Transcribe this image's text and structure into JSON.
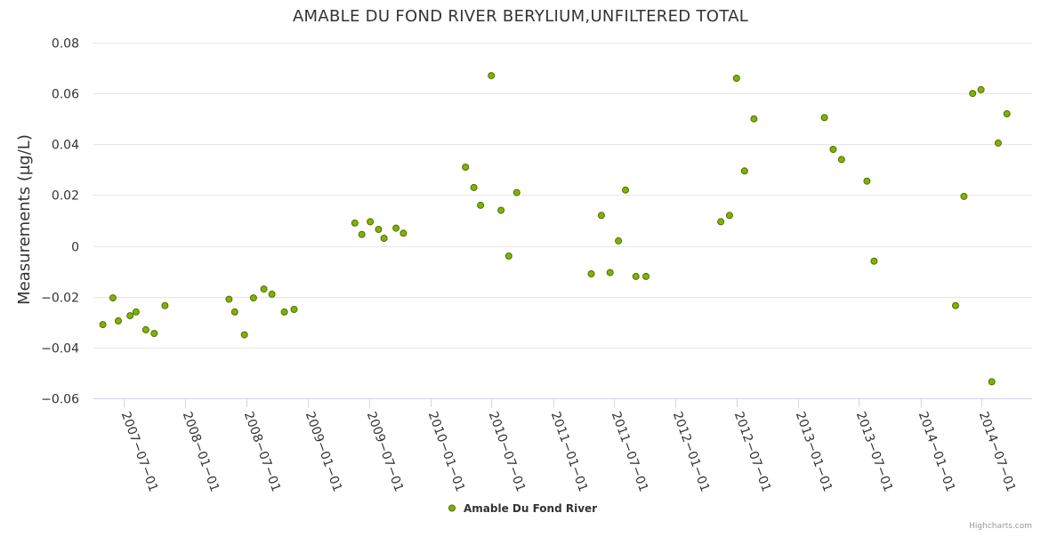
{
  "chart_data": {
    "type": "scatter",
    "title": "AMABLE DU FOND RIVER BERYLIUM,UNFILTERED TOTAL",
    "xlabel": "",
    "ylabel": "Measurements (µg/L)",
    "ylim": [
      -0.06,
      0.08
    ],
    "yticks": [
      -0.06,
      -0.04,
      -0.02,
      0,
      0.02,
      0.04,
      0.06,
      0.08
    ],
    "ytick_labels": [
      "−0.06",
      "−0.04",
      "−0.02",
      "0",
      "0.02",
      "0.04",
      "0.06",
      "0.08"
    ],
    "xticks": [
      "2007-07-01",
      "2008-01-01",
      "2008-07-01",
      "2009-01-01",
      "2009-07-01",
      "2010-01-01",
      "2010-07-01",
      "2011-01-01",
      "2011-07-01",
      "2012-01-01",
      "2012-07-01",
      "2013-01-01",
      "2013-07-01",
      "2014-01-01",
      "2014-07-01"
    ],
    "xtick_labels": [
      "2007−07−01",
      "2008−01−01",
      "2008−07−01",
      "2009−01−01",
      "2009−07−01",
      "2010−01−01",
      "2010−07−01",
      "2011−01−01",
      "2011−07−01",
      "2012−01−01",
      "2012−07−01",
      "2013−01−01",
      "2013−07−01",
      "2014−01−01",
      "2014−07−01"
    ],
    "grid": true,
    "legend_position": "bottom-center",
    "series": [
      {
        "name": "Amable Du Fond River",
        "color": "#7cb500",
        "points": [
          {
            "x": "2007-04-30",
            "y": -0.031
          },
          {
            "x": "2007-05-30",
            "y": -0.0205
          },
          {
            "x": "2007-06-15",
            "y": -0.0295
          },
          {
            "x": "2007-07-20",
            "y": -0.0275
          },
          {
            "x": "2007-08-07",
            "y": -0.026
          },
          {
            "x": "2007-09-05",
            "y": -0.033
          },
          {
            "x": "2007-09-30",
            "y": -0.0345
          },
          {
            "x": "2007-11-01",
            "y": -0.0235
          },
          {
            "x": "2008-05-10",
            "y": -0.021
          },
          {
            "x": "2008-05-27",
            "y": -0.026
          },
          {
            "x": "2008-06-25",
            "y": -0.035
          },
          {
            "x": "2008-07-22",
            "y": -0.0205
          },
          {
            "x": "2008-08-22",
            "y": -0.017
          },
          {
            "x": "2008-09-15",
            "y": -0.019
          },
          {
            "x": "2008-10-22",
            "y": -0.026
          },
          {
            "x": "2008-11-20",
            "y": -0.025
          },
          {
            "x": "2009-05-20",
            "y": 0.009
          },
          {
            "x": "2009-06-10",
            "y": 0.0045
          },
          {
            "x": "2009-07-05",
            "y": 0.0095
          },
          {
            "x": "2009-07-30",
            "y": 0.0065
          },
          {
            "x": "2009-08-15",
            "y": 0.003
          },
          {
            "x": "2009-09-20",
            "y": 0.007
          },
          {
            "x": "2009-10-12",
            "y": 0.005
          },
          {
            "x": "2010-04-15",
            "y": 0.031
          },
          {
            "x": "2010-05-10",
            "y": 0.023
          },
          {
            "x": "2010-05-30",
            "y": 0.016
          },
          {
            "x": "2010-07-01",
            "y": 0.067
          },
          {
            "x": "2010-07-30",
            "y": 0.014
          },
          {
            "x": "2010-08-22",
            "y": -0.004
          },
          {
            "x": "2010-09-15",
            "y": 0.021
          },
          {
            "x": "2011-04-25",
            "y": -0.011
          },
          {
            "x": "2011-05-25",
            "y": 0.012
          },
          {
            "x": "2011-06-20",
            "y": -0.0105
          },
          {
            "x": "2011-07-15",
            "y": 0.002
          },
          {
            "x": "2011-08-05",
            "y": 0.022
          },
          {
            "x": "2011-09-05",
            "y": -0.012
          },
          {
            "x": "2011-10-05",
            "y": -0.012
          },
          {
            "x": "2012-05-15",
            "y": 0.0095
          },
          {
            "x": "2012-06-10",
            "y": 0.012
          },
          {
            "x": "2012-07-01",
            "y": 0.066
          },
          {
            "x": "2012-07-25",
            "y": 0.0295
          },
          {
            "x": "2012-08-22",
            "y": 0.05
          },
          {
            "x": "2013-03-20",
            "y": 0.0505
          },
          {
            "x": "2013-04-15",
            "y": 0.038
          },
          {
            "x": "2013-05-10",
            "y": 0.034
          },
          {
            "x": "2013-07-25",
            "y": 0.0255
          },
          {
            "x": "2013-08-15",
            "y": -0.006
          },
          {
            "x": "2014-04-15",
            "y": -0.0235
          },
          {
            "x": "2014-05-10",
            "y": 0.0195
          },
          {
            "x": "2014-06-05",
            "y": 0.06
          },
          {
            "x": "2014-06-30",
            "y": 0.0615
          },
          {
            "x": "2014-08-01",
            "y": -0.0535
          },
          {
            "x": "2014-08-20",
            "y": 0.0405
          },
          {
            "x": "2014-09-15",
            "y": 0.052
          }
        ]
      }
    ]
  },
  "credits": "Highcharts.com"
}
